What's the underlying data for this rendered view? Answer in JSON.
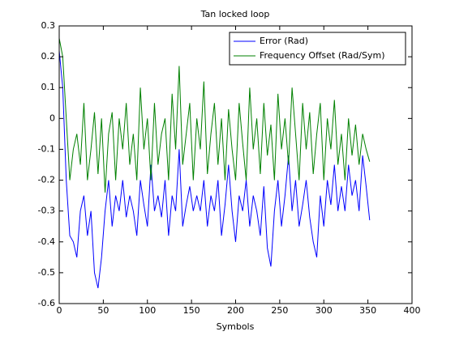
{
  "chart_data": {
    "type": "line",
    "title": "Tan locked loop",
    "xlabel": "Symbols",
    "x": [
      0,
      4,
      8,
      12,
      16,
      20,
      24,
      28,
      32,
      36,
      40,
      44,
      48,
      52,
      56,
      60,
      64,
      68,
      72,
      76,
      80,
      84,
      88,
      92,
      96,
      100,
      104,
      108,
      112,
      116,
      120,
      124,
      128,
      132,
      136,
      140,
      144,
      148,
      152,
      156,
      160,
      164,
      168,
      172,
      176,
      180,
      184,
      188,
      192,
      196,
      200,
      204,
      208,
      212,
      216,
      220,
      224,
      228,
      232,
      236,
      240,
      244,
      248,
      252,
      256,
      260,
      264,
      268,
      272,
      276,
      280,
      284,
      288,
      292,
      296,
      300,
      304,
      308,
      312,
      316,
      320,
      324,
      328,
      332,
      336,
      340,
      344,
      348,
      352
    ],
    "series": [
      {
        "name": "Error (Rad)",
        "color": "#0000ff",
        "values": [
          0.22,
          0.1,
          -0.2,
          -0.38,
          -0.4,
          -0.45,
          -0.3,
          -0.25,
          -0.38,
          -0.3,
          -0.5,
          -0.55,
          -0.45,
          -0.3,
          -0.2,
          -0.35,
          -0.25,
          -0.3,
          -0.2,
          -0.32,
          -0.25,
          -0.3,
          -0.38,
          -0.2,
          -0.28,
          -0.35,
          -0.15,
          -0.3,
          -0.25,
          -0.32,
          -0.2,
          -0.38,
          -0.25,
          -0.3,
          -0.1,
          -0.35,
          -0.28,
          -0.22,
          -0.3,
          -0.25,
          -0.3,
          -0.2,
          -0.35,
          -0.25,
          -0.3,
          -0.2,
          -0.38,
          -0.28,
          -0.15,
          -0.3,
          -0.4,
          -0.25,
          -0.3,
          -0.2,
          -0.35,
          -0.25,
          -0.3,
          -0.38,
          -0.22,
          -0.42,
          -0.48,
          -0.3,
          -0.2,
          -0.35,
          -0.25,
          -0.12,
          -0.3,
          -0.2,
          -0.35,
          -0.28,
          -0.2,
          -0.32,
          -0.4,
          -0.45,
          -0.25,
          -0.35,
          -0.2,
          -0.28,
          -0.15,
          -0.3,
          -0.22,
          -0.3,
          -0.15,
          -0.25,
          -0.2,
          -0.3,
          -0.12,
          -0.22,
          -0.33
        ]
      },
      {
        "name": "Frequency Offset (Rad/Sym)",
        "color": "#008000",
        "values": [
          0.26,
          0.2,
          0.0,
          -0.2,
          -0.1,
          -0.05,
          -0.15,
          0.05,
          -0.2,
          -0.1,
          0.02,
          -0.18,
          0.0,
          -0.24,
          -0.05,
          0.02,
          -0.2,
          0.0,
          -0.1,
          0.05,
          -0.15,
          -0.05,
          -0.2,
          0.1,
          -0.1,
          0.0,
          -0.2,
          0.05,
          -0.15,
          -0.05,
          0.0,
          -0.2,
          0.08,
          -0.1,
          0.17,
          -0.15,
          -0.05,
          0.05,
          -0.2,
          0.0,
          -0.1,
          0.12,
          -0.18,
          -0.05,
          0.05,
          -0.15,
          0.0,
          -0.2,
          0.03,
          -0.1,
          -0.2,
          0.05,
          -0.08,
          -0.2,
          0.1,
          -0.1,
          0.0,
          -0.18,
          0.05,
          -0.12,
          -0.02,
          -0.2,
          0.08,
          -0.1,
          0.0,
          -0.15,
          0.1,
          -0.05,
          -0.2,
          0.05,
          -0.1,
          0.02,
          -0.18,
          -0.05,
          0.05,
          -0.2,
          0.0,
          -0.1,
          0.06,
          -0.15,
          -0.05,
          -0.2,
          0.0,
          -0.12,
          -0.02,
          -0.15,
          -0.05,
          -0.1,
          -0.14
        ]
      }
    ],
    "xlim": [
      0,
      400
    ],
    "xticks": [
      0,
      50,
      100,
      150,
      200,
      250,
      300,
      350,
      400
    ],
    "ylim": [
      -0.6,
      0.3
    ],
    "yticks": [
      -0.6,
      -0.5,
      -0.4,
      -0.3,
      -0.2,
      -0.1,
      0,
      0.1,
      0.2,
      0.3
    ],
    "legend": "upper right",
    "grid": false
  }
}
